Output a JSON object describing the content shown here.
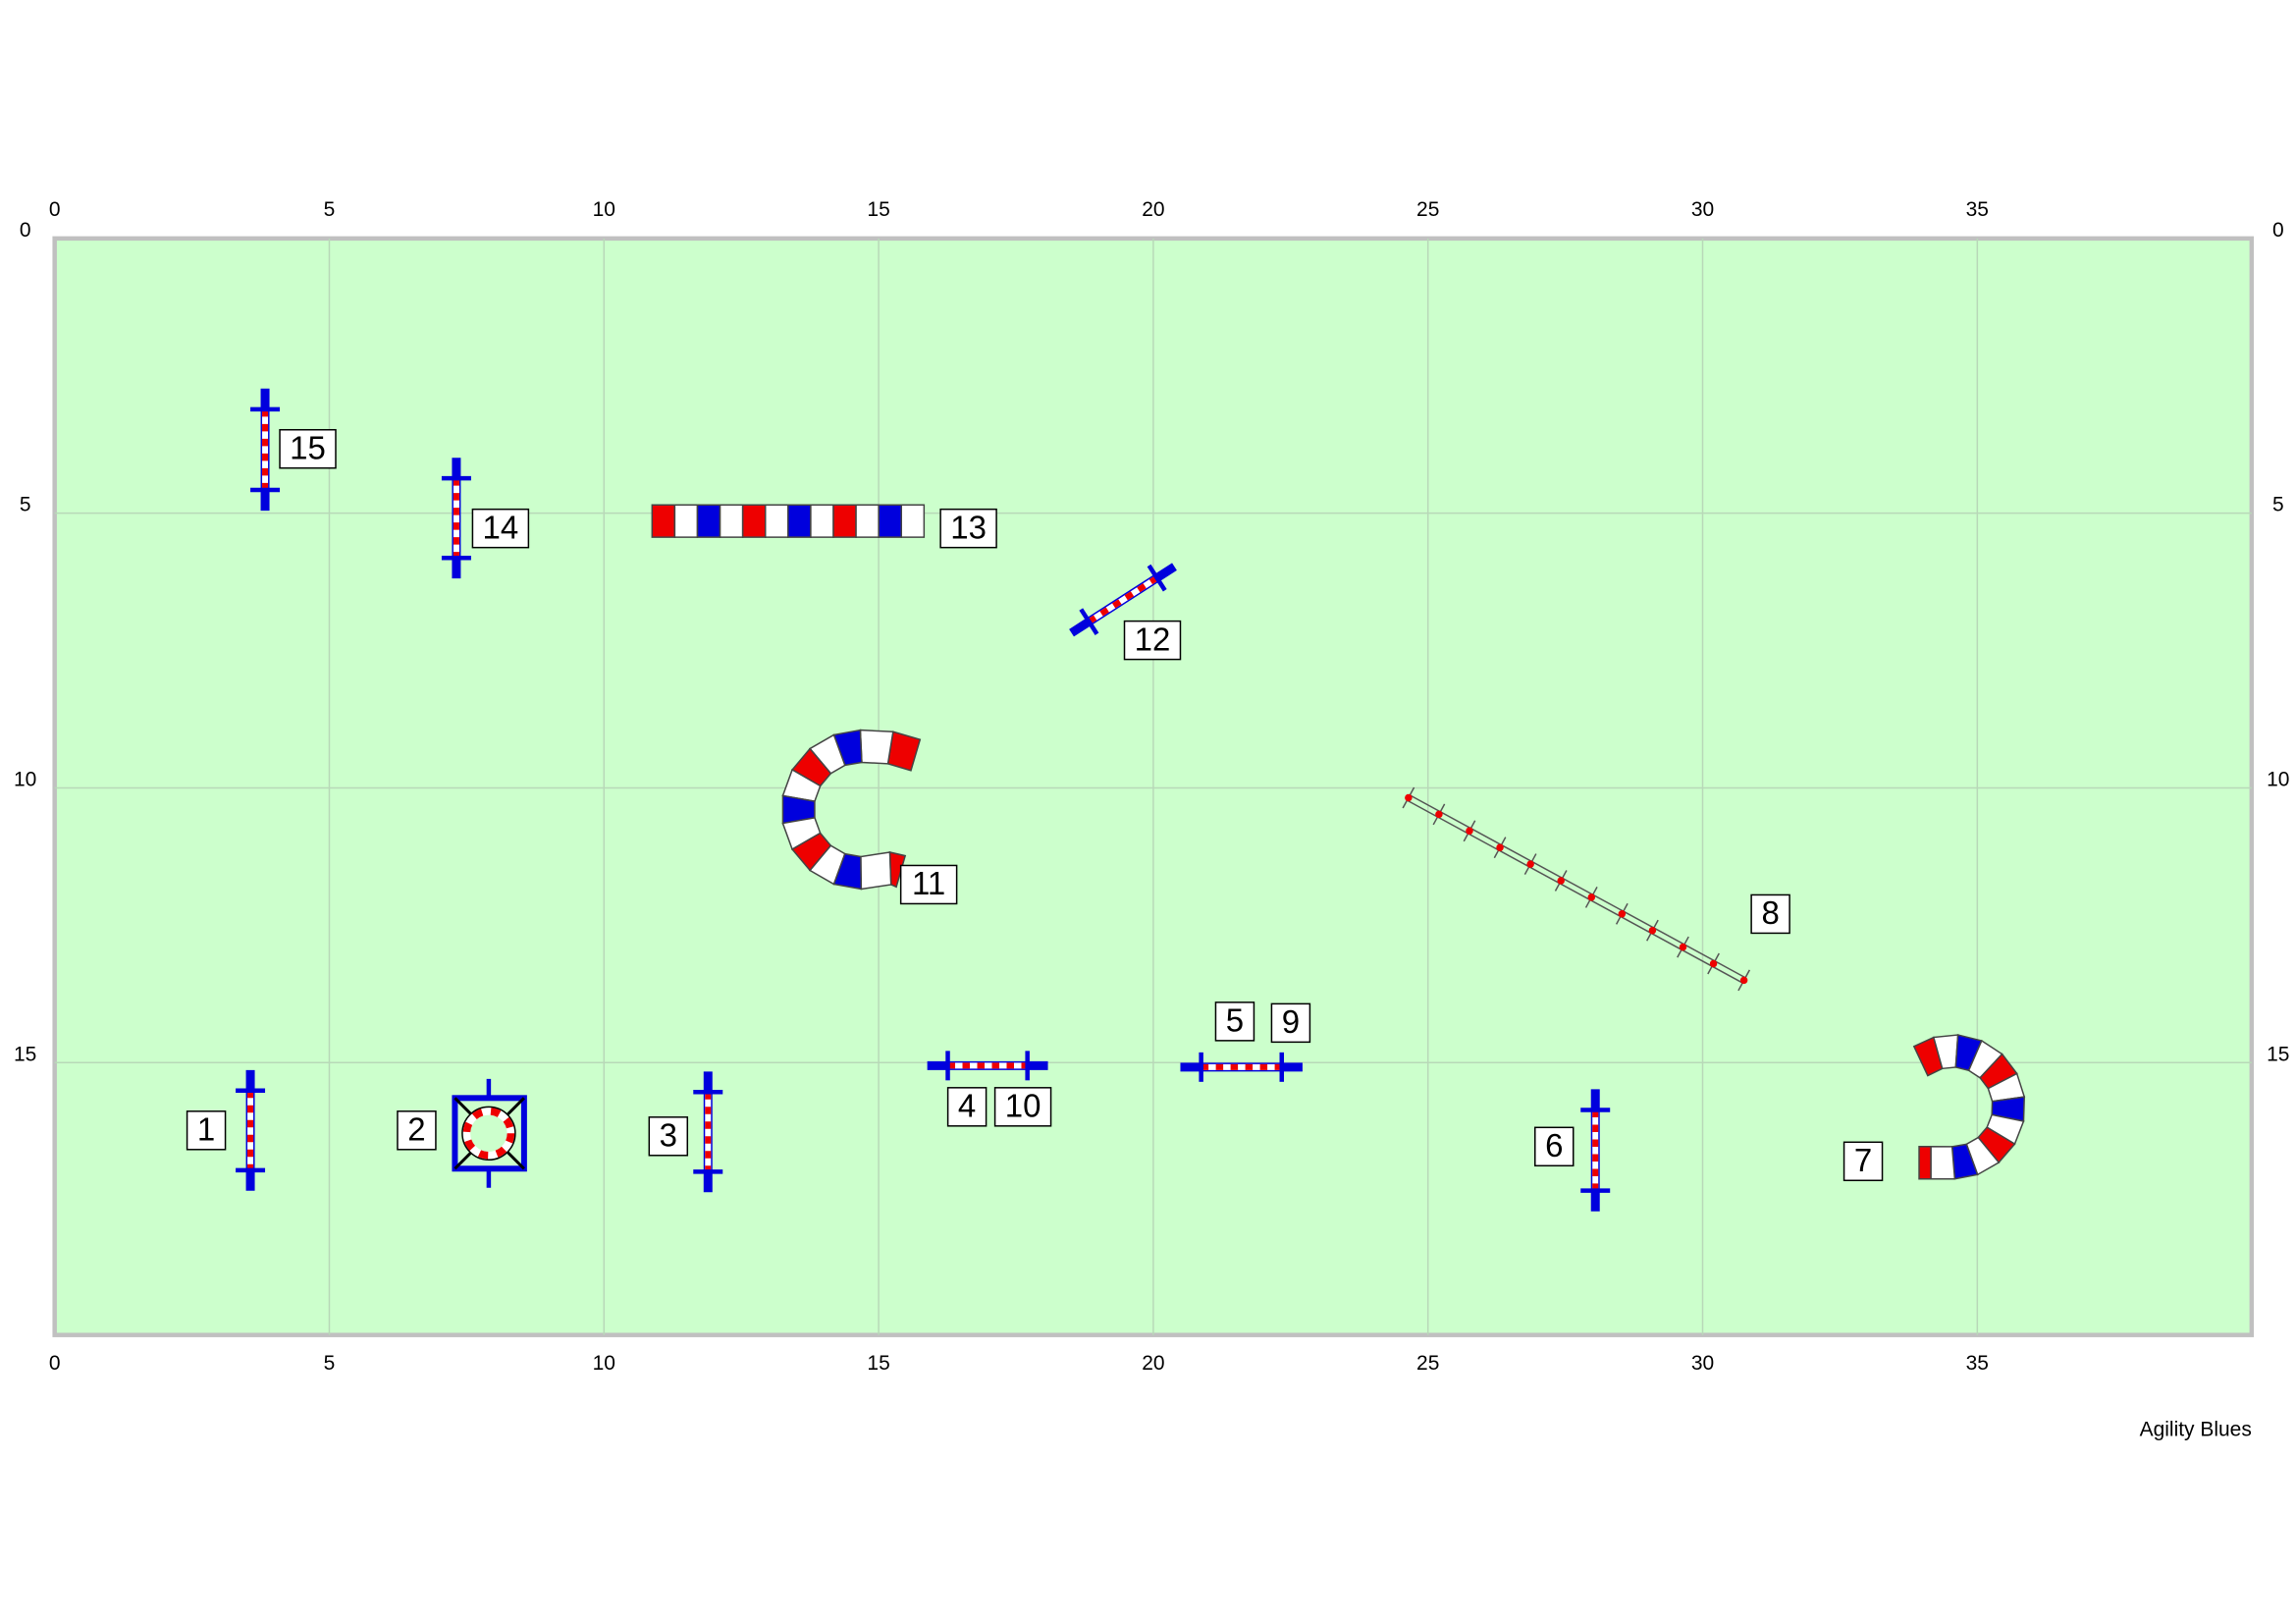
{
  "top_axis": [
    "0",
    "5",
    "10",
    "15",
    "20",
    "25",
    "30",
    "35"
  ],
  "bottom_axis": [
    "0",
    "5",
    "10",
    "15",
    "20",
    "25",
    "30",
    "35"
  ],
  "left_axis": [
    "0",
    "5",
    "10",
    "15"
  ],
  "right_axis": [
    "0",
    "5",
    "10",
    "15"
  ],
  "obstacles": [
    {
      "label": "1"
    },
    {
      "label": "2"
    },
    {
      "label": "3"
    },
    {
      "label": "4"
    },
    {
      "label": "10"
    },
    {
      "label": "5"
    },
    {
      "label": "9"
    },
    {
      "label": "6"
    },
    {
      "label": "7"
    },
    {
      "label": "8"
    },
    {
      "label": "11"
    },
    {
      "label": "12"
    },
    {
      "label": "13"
    },
    {
      "label": "14"
    },
    {
      "label": "15"
    }
  ],
  "footer": "Agility Blues"
}
